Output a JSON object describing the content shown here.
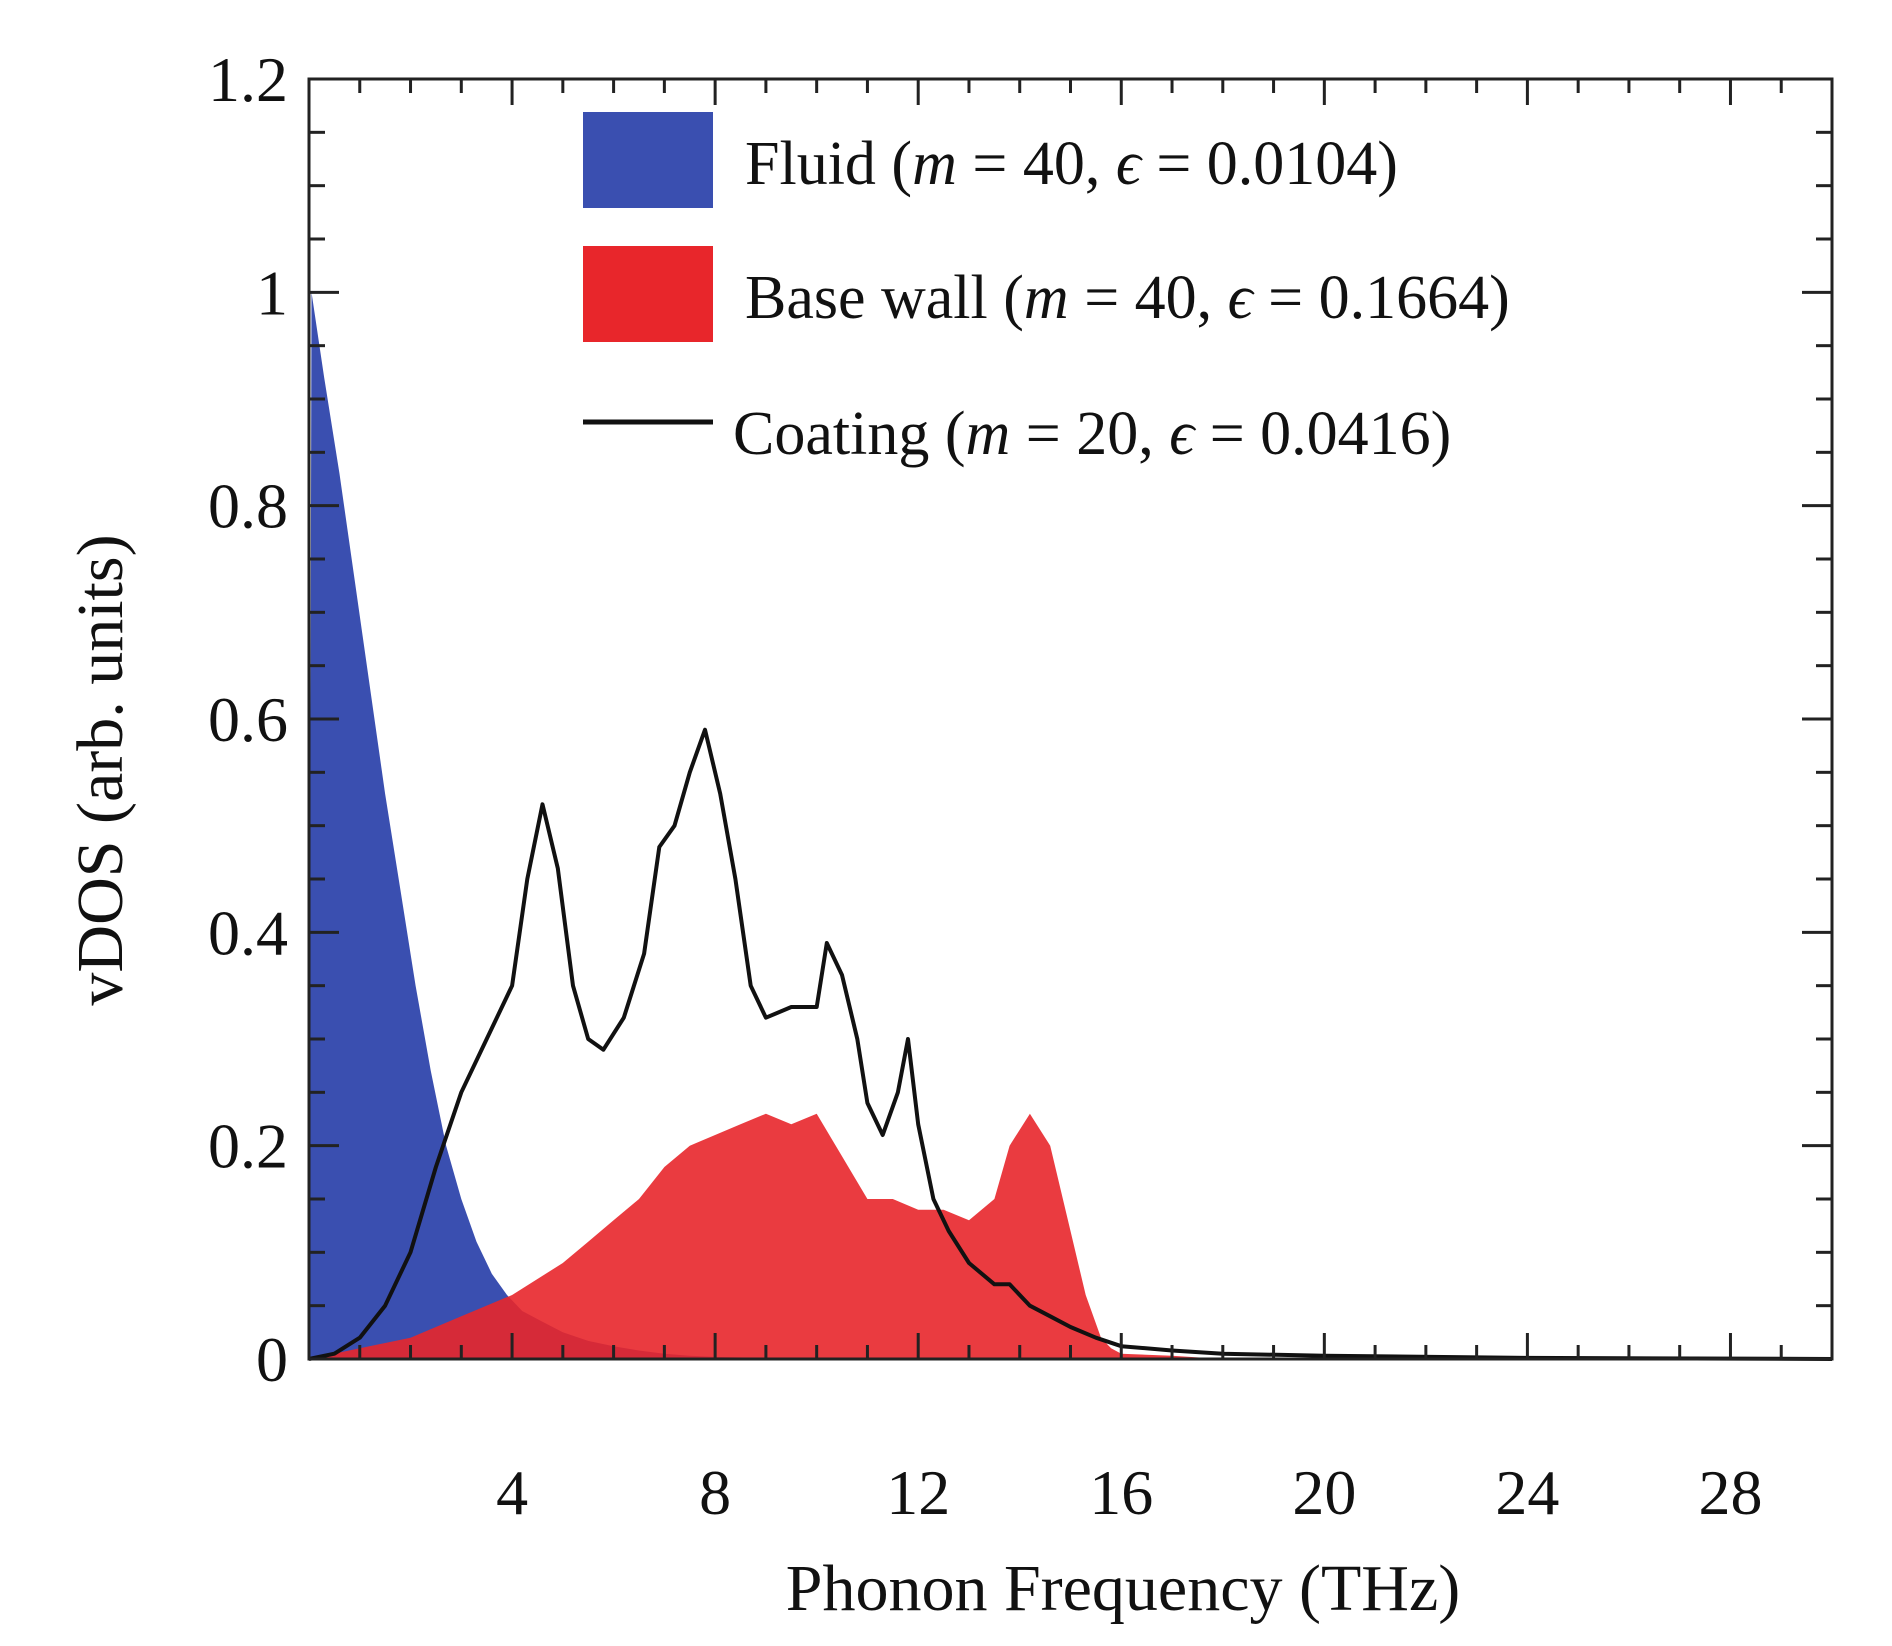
{
  "chart_data": {
    "type": "area",
    "title": "",
    "xlabel": "Phonon Frequency (THz)",
    "ylabel": "vDOS (arb. units)",
    "xlim": [
      0,
      30
    ],
    "ylim": [
      0,
      1.2
    ],
    "x_ticks": [
      4,
      8,
      12,
      16,
      20,
      24,
      28
    ],
    "y_ticks": [
      0,
      0.2,
      0.4,
      0.6,
      0.8,
      1,
      1.2
    ],
    "y_tick_labels": [
      "0",
      "0.2",
      "0.4",
      "0.6",
      "0.8",
      "1",
      "1.2"
    ],
    "legend_position": "top-right",
    "series": [
      {
        "name": "Fluid",
        "legend": {
          "prefix": "Fluid (",
          "m_value": "40",
          "eps_value": "0.0104"
        },
        "style": "filled",
        "color": "#3a4fb0",
        "x": [
          0.0,
          0.05,
          0.3,
          0.6,
          0.9,
          1.2,
          1.5,
          1.8,
          2.1,
          2.4,
          2.7,
          3.0,
          3.3,
          3.6,
          3.9,
          4.2,
          4.6,
          5.0,
          5.5,
          6.0,
          6.5,
          7.0,
          7.5,
          8.0,
          9.0,
          10.0
        ],
        "y": [
          0.0,
          1.0,
          0.92,
          0.83,
          0.73,
          0.63,
          0.53,
          0.44,
          0.35,
          0.27,
          0.2,
          0.15,
          0.11,
          0.08,
          0.06,
          0.045,
          0.035,
          0.025,
          0.017,
          0.012,
          0.008,
          0.005,
          0.003,
          0.002,
          0.001,
          0.0
        ]
      },
      {
        "name": "Base wall",
        "legend": {
          "prefix": "Base wall (",
          "m_value": "40",
          "eps_value": "0.1664"
        },
        "style": "filled",
        "color": "#e8262b",
        "x": [
          0.0,
          1.0,
          2.0,
          3.0,
          4.0,
          5.0,
          5.5,
          6.0,
          6.5,
          7.0,
          7.5,
          8.0,
          8.5,
          9.0,
          9.5,
          10.0,
          10.5,
          11.0,
          11.5,
          12.0,
          12.5,
          13.0,
          13.5,
          13.8,
          14.2,
          14.6,
          15.0,
          15.3,
          15.6,
          15.8,
          16.0,
          17.0,
          18.0
        ],
        "y": [
          0.0,
          0.01,
          0.02,
          0.04,
          0.06,
          0.09,
          0.11,
          0.13,
          0.15,
          0.18,
          0.2,
          0.21,
          0.22,
          0.23,
          0.22,
          0.23,
          0.19,
          0.15,
          0.15,
          0.14,
          0.14,
          0.13,
          0.15,
          0.2,
          0.23,
          0.2,
          0.12,
          0.06,
          0.02,
          0.01,
          0.005,
          0.003,
          0.0
        ]
      },
      {
        "name": "Coating",
        "legend": {
          "prefix": "Coating (",
          "m_value": "20",
          "eps_value": "0.0416"
        },
        "style": "line",
        "color": "#111111",
        "x": [
          0.0,
          0.5,
          1.0,
          1.5,
          2.0,
          2.5,
          3.0,
          3.5,
          4.0,
          4.3,
          4.6,
          4.9,
          5.2,
          5.5,
          5.8,
          6.2,
          6.6,
          6.9,
          7.2,
          7.5,
          7.8,
          8.1,
          8.4,
          8.7,
          9.0,
          9.5,
          10.0,
          10.2,
          10.5,
          10.8,
          11.0,
          11.3,
          11.6,
          11.8,
          12.0,
          12.3,
          12.6,
          13.0,
          13.5,
          13.8,
          14.2,
          14.6,
          15.0,
          15.5,
          16.0,
          17.0,
          18.0,
          20.0,
          24.0,
          30.0
        ],
        "y": [
          0.0,
          0.005,
          0.02,
          0.05,
          0.1,
          0.18,
          0.25,
          0.3,
          0.35,
          0.45,
          0.52,
          0.46,
          0.35,
          0.3,
          0.29,
          0.32,
          0.38,
          0.48,
          0.5,
          0.55,
          0.59,
          0.53,
          0.45,
          0.35,
          0.32,
          0.33,
          0.33,
          0.39,
          0.36,
          0.3,
          0.24,
          0.21,
          0.25,
          0.3,
          0.22,
          0.15,
          0.12,
          0.09,
          0.07,
          0.07,
          0.05,
          0.04,
          0.03,
          0.02,
          0.012,
          0.008,
          0.005,
          0.003,
          0.001,
          0.0
        ]
      }
    ]
  }
}
